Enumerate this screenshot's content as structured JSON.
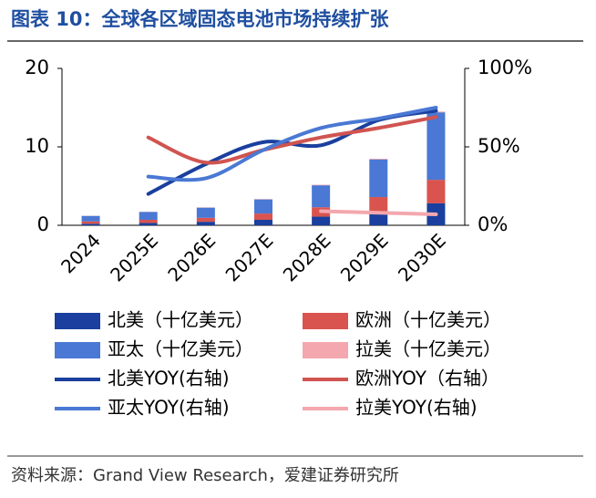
{
  "title": "图表 10：全球各区域固态电池市场持续扩张",
  "source": "资料来源：Grand View Research，爱建证券研究所",
  "chart_data": {
    "type": "bar_line",
    "categories": [
      "2024",
      "2025E",
      "2026E",
      "2027E",
      "2028E",
      "2029E",
      "2030E"
    ],
    "ylim": [
      0,
      20
    ],
    "yticks": [
      0,
      10,
      20
    ],
    "y2lim": [
      0,
      100
    ],
    "y2ticks": [
      {
        "value": 0,
        "label": "0%"
      },
      {
        "value": 50,
        "label": "50%"
      },
      {
        "value": 100,
        "label": "100%"
      }
    ],
    "series": [
      {
        "name": "北美（十亿美元）",
        "type": "bar",
        "color": "#1a3f9e",
        "values": [
          0.2,
          0.3,
          0.45,
          0.7,
          1.1,
          1.5,
          2.8
        ]
      },
      {
        "name": "欧洲（十亿美元）",
        "type": "bar",
        "color": "#d9534f",
        "values": [
          0.3,
          0.4,
          0.5,
          0.8,
          1.2,
          2.1,
          3.0
        ]
      },
      {
        "name": "亚太（十亿美元）",
        "type": "bar",
        "color": "#4a78d4",
        "values": [
          0.7,
          1.0,
          1.3,
          1.8,
          2.8,
          4.8,
          8.6
        ]
      },
      {
        "name": "拉美（十亿美元）",
        "type": "bar",
        "color": "#f4a7ae",
        "values": [
          0.02,
          0.03,
          0.04,
          0.05,
          0.07,
          0.09,
          0.1
        ]
      },
      {
        "name": "北美YOY(右轴)",
        "type": "line",
        "axis": "y2",
        "color": "#1a3f9e",
        "values": [
          null,
          20,
          39,
          53,
          51,
          67,
          73
        ]
      },
      {
        "name": "欧洲YOY（右轴）",
        "type": "line",
        "axis": "y2",
        "color": "#d05450",
        "values": [
          null,
          56,
          40,
          48,
          56,
          62,
          69
        ]
      },
      {
        "name": "亚太YOY(右轴)",
        "type": "line",
        "axis": "y2",
        "color": "#4a78d4",
        "values": [
          null,
          31,
          30,
          48,
          62,
          68,
          75
        ]
      },
      {
        "name": "拉美YOY(右轴)",
        "type": "line",
        "axis": "y2",
        "color": "#f4a7ae",
        "values": [
          null,
          null,
          null,
          null,
          9,
          8,
          7
        ]
      }
    ]
  }
}
